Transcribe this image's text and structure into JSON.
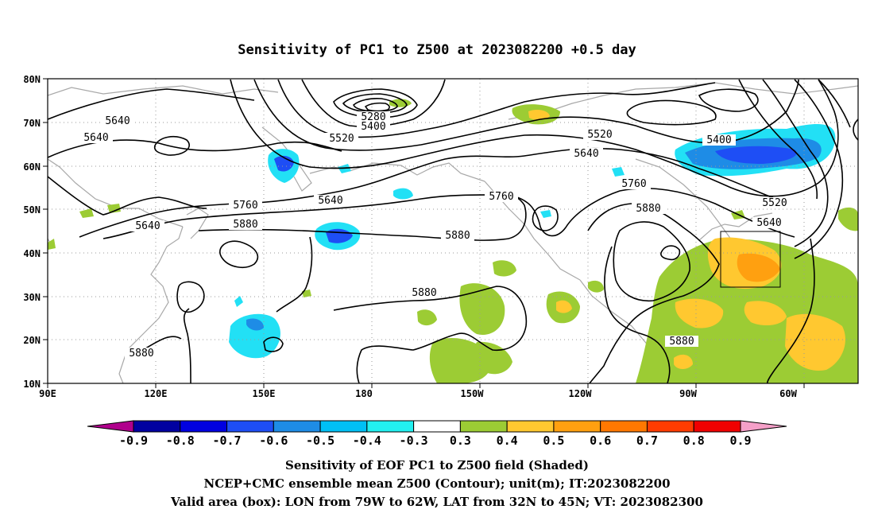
{
  "title": "Sensitivity of PC1 to Z500 at 2023082200 +0.5 day",
  "map": {
    "lon_labels": [
      "90E",
      "120E",
      "150E",
      "180",
      "150W",
      "120W",
      "90W",
      "60W"
    ],
    "lat_labels": [
      "80N",
      "70N",
      "60N",
      "50N",
      "40N",
      "30N",
      "20N",
      "10N"
    ],
    "contour_labels": [
      "5640",
      "5640",
      "5640",
      "5280",
      "5400",
      "5520",
      "5640",
      "5760",
      "5880",
      "5760",
      "5520",
      "5640",
      "5760",
      "5880",
      "5880",
      "5400",
      "5520",
      "5640",
      "5880",
      "5880",
      "5880"
    ],
    "valid_box": {
      "lon_west": -79,
      "lon_east": -62,
      "lat_south": 32,
      "lat_north": 45
    }
  },
  "colorbar": {
    "labels": [
      "-0.9",
      "-0.8",
      "-0.7",
      "-0.6",
      "-0.5",
      "-0.4",
      "-0.3",
      "0.3",
      "0.4",
      "0.5",
      "0.6",
      "0.7",
      "0.8",
      "0.9"
    ],
    "colors": [
      "#b0008c",
      "#0000a0",
      "#0000e0",
      "#1e4ef5",
      "#1e8ce6",
      "#00c0f5",
      "#22f0f0",
      "#ffffff",
      "#9ccc34",
      "#ffc830",
      "#ffa010",
      "#ff7800",
      "#ff3c00",
      "#f00000",
      "#f5a0c8"
    ]
  },
  "caption": {
    "line1": "Sensitivity of EOF PC1 to Z500 field (Shaded)",
    "line2": "NCEP+CMC ensemble mean Z500 (Contour); unit(m); IT:2023082200",
    "line3": "Valid area (box): LON from 79W to 62W, LAT from 32N to 45N; VT: 2023082300"
  }
}
